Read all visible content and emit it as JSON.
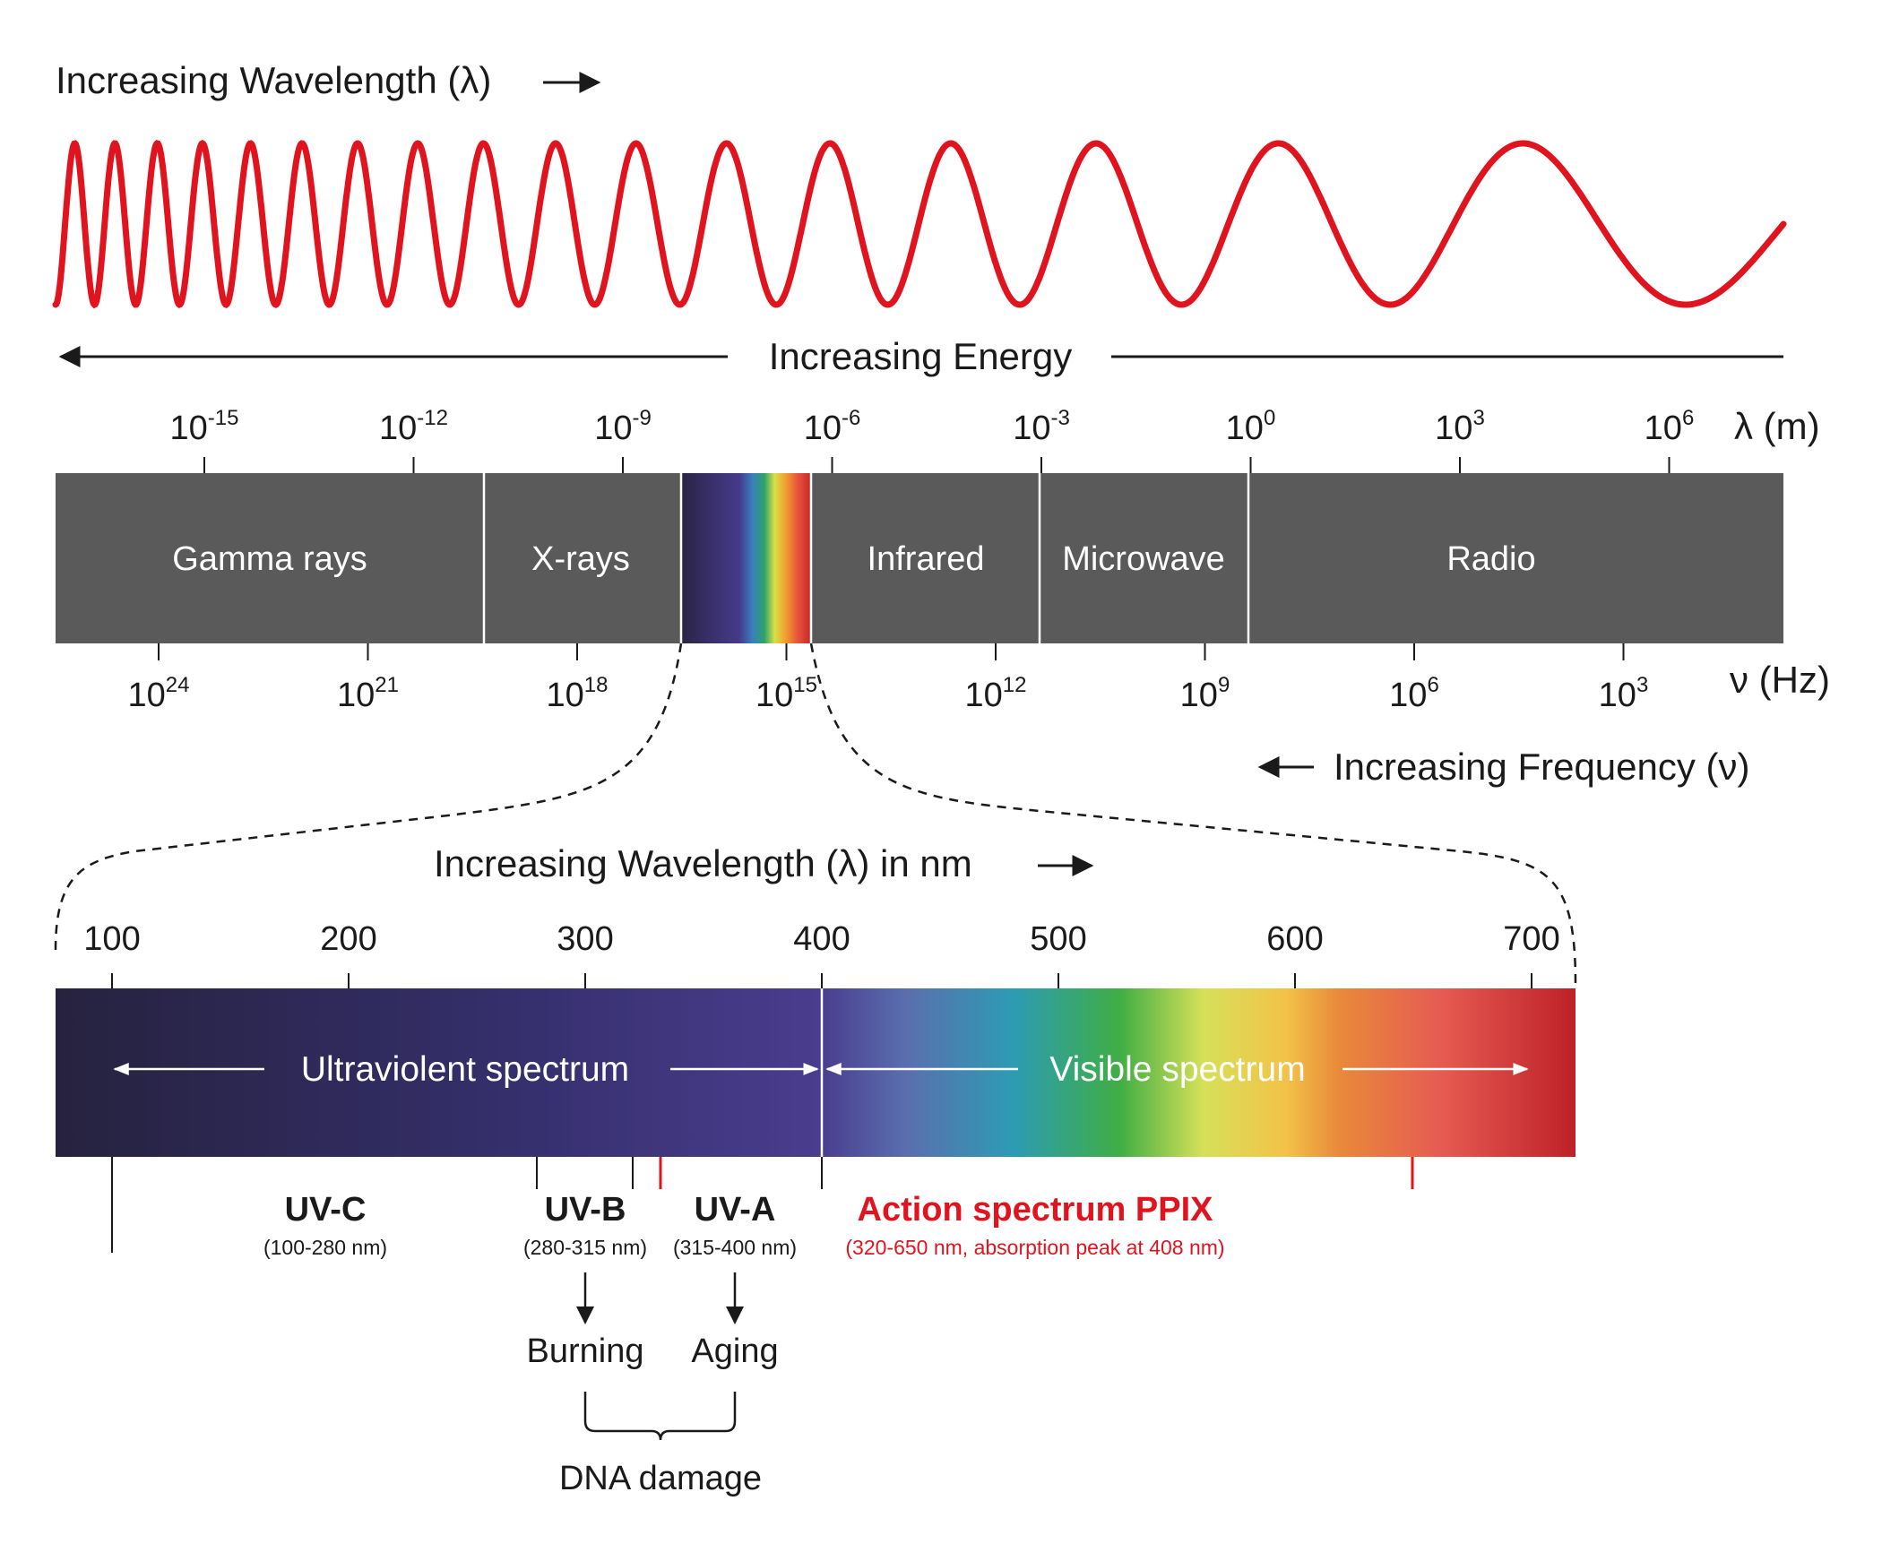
{
  "titles": {
    "wavelength": "Increasing Wavelength (λ)",
    "energy": "Increasing Energy",
    "frequency": "Increasing Frequency (ν)",
    "wavelength_nm": "Increasing Wavelength (λ) in nm"
  },
  "axis_units": {
    "wavelength": "λ (m)",
    "frequency": "ν (Hz)"
  },
  "wavelength_ticks": [
    {
      "base": "10",
      "exp": "-15"
    },
    {
      "base": "10",
      "exp": "-12"
    },
    {
      "base": "10",
      "exp": "-9"
    },
    {
      "base": "10",
      "exp": "-6"
    },
    {
      "base": "10",
      "exp": "-3"
    },
    {
      "base": "10",
      "exp": "0"
    },
    {
      "base": "10",
      "exp": "3"
    },
    {
      "base": "10",
      "exp": "6"
    }
  ],
  "frequency_ticks": [
    {
      "base": "10",
      "exp": "24"
    },
    {
      "base": "10",
      "exp": "21"
    },
    {
      "base": "10",
      "exp": "18"
    },
    {
      "base": "10",
      "exp": "15"
    },
    {
      "base": "10",
      "exp": "12"
    },
    {
      "base": "10",
      "exp": "9"
    },
    {
      "base": "10",
      "exp": "6"
    },
    {
      "base": "10",
      "exp": "3"
    }
  ],
  "bands": {
    "gamma": "Gamma rays",
    "xray": "X-rays",
    "infrared": "Infrared",
    "microwave": "Microwave",
    "radio": "Radio"
  },
  "nm_ticks": [
    "100",
    "200",
    "300",
    "400",
    "500",
    "600",
    "700"
  ],
  "regions": {
    "uv": "Ultraviolent spectrum",
    "visible": "Visible spectrum"
  },
  "uv_types": [
    {
      "name": "UV-C",
      "range": "(100-280 nm)"
    },
    {
      "name": "UV-B",
      "range": "(280-315 nm)"
    },
    {
      "name": "UV-A",
      "range": "(315-400 nm)"
    }
  ],
  "ppix": {
    "name": "Action spectrum PPIX",
    "range": "(320-650 nm, absorption peak at 408 nm)"
  },
  "effects": {
    "burning": "Burning",
    "aging": "Aging",
    "dna": "DNA damage"
  },
  "colors": {
    "wave": "#e0141e",
    "band_gray": "#5a5a5a",
    "ppix": "#e0141e",
    "text": "#1a1a1a"
  }
}
